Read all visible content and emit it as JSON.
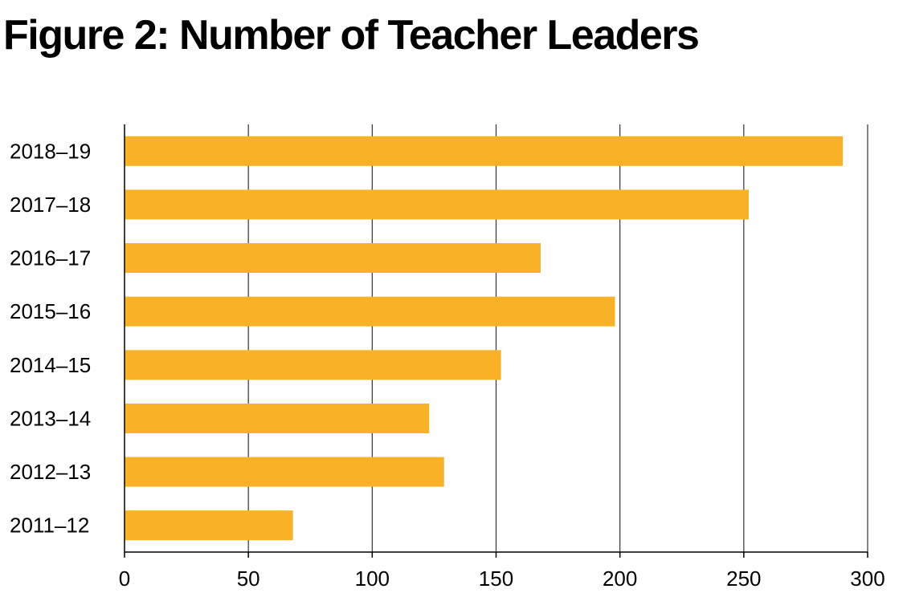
{
  "chart_data": {
    "type": "bar",
    "orientation": "horizontal",
    "title": "Figure 2: Number of Teacher Leaders",
    "xlabel": "",
    "ylabel": "",
    "categories": [
      "2018–19",
      "2017–18",
      "2016–17",
      "2015–16",
      "2014–15",
      "2013–14",
      "2012–13",
      "2011–12"
    ],
    "values": [
      290,
      252,
      168,
      198,
      152,
      123,
      129,
      68
    ],
    "xlim": [
      0,
      300
    ],
    "xticks": [
      "0",
      "50",
      "100",
      "150",
      "200",
      "250",
      "300"
    ],
    "grid": "vertical",
    "legend": "none",
    "bar_color": "#F9B228",
    "grid_color": "#333333"
  }
}
